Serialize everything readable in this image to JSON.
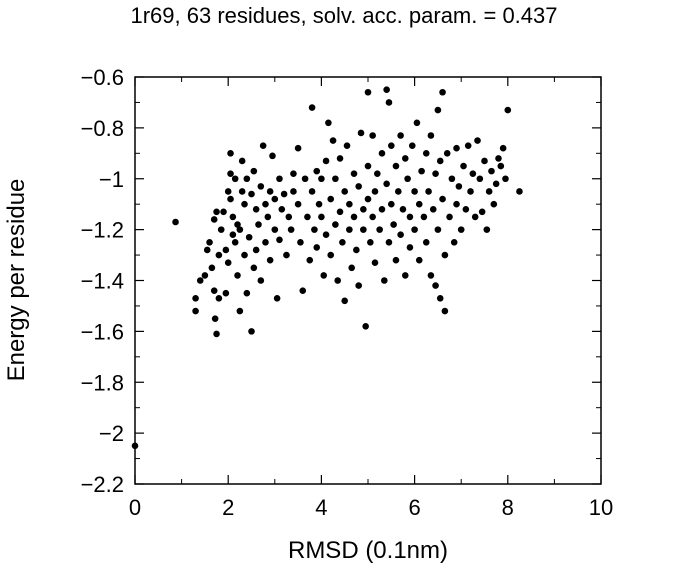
{
  "chart_data": {
    "type": "scatter",
    "title": "1r69, 63 residues, solv. acc. param. = 0.437",
    "xlabel": "RMSD (0.1nm)",
    "ylabel": "Energy per residue",
    "xlim": [
      0,
      10
    ],
    "ylim": [
      -2.2,
      -0.6
    ],
    "xticks": [
      0,
      2,
      4,
      6,
      8,
      10
    ],
    "yticks": [
      -2.2,
      -2,
      -1.8,
      -1.6,
      -1.4,
      -1.2,
      -1,
      -0.8,
      -0.6
    ],
    "xtick_labels": [
      "0",
      "2",
      "4",
      "6",
      "8",
      "10"
    ],
    "ytick_labels": [
      "−2.2",
      "−2",
      "−1.8",
      "−1.6",
      "−1.4",
      "−1.2",
      "−1",
      "−0.8",
      "−0.6"
    ],
    "grid": false,
    "marker_color": "#000000",
    "points": [
      [
        0.0,
        -2.05
      ],
      [
        0.87,
        -1.17
      ],
      [
        1.3,
        -1.47
      ],
      [
        1.3,
        -1.52
      ],
      [
        1.4,
        -1.4
      ],
      [
        1.5,
        -1.38
      ],
      [
        1.55,
        -1.28
      ],
      [
        1.6,
        -1.25
      ],
      [
        1.65,
        -1.35
      ],
      [
        1.7,
        -1.16
      ],
      [
        1.7,
        -1.44
      ],
      [
        1.72,
        -1.55
      ],
      [
        1.75,
        -1.13
      ],
      [
        1.75,
        -1.61
      ],
      [
        1.8,
        -1.3
      ],
      [
        1.8,
        -1.47
      ],
      [
        1.85,
        -1.2
      ],
      [
        1.9,
        -1.13
      ],
      [
        1.95,
        -1.28
      ],
      [
        1.95,
        -1.45
      ],
      [
        2.0,
        -1.05
      ],
      [
        2.0,
        -1.33
      ],
      [
        2.05,
        -1.08
      ],
      [
        2.05,
        -0.9
      ],
      [
        2.05,
        -0.98
      ],
      [
        2.1,
        -1.15
      ],
      [
        2.1,
        -1.22
      ],
      [
        2.15,
        -1.0
      ],
      [
        2.15,
        -1.25
      ],
      [
        2.2,
        -1.38
      ],
      [
        2.2,
        -1.18
      ],
      [
        2.25,
        -1.52
      ],
      [
        2.25,
        -1.2
      ],
      [
        2.3,
        -0.93
      ],
      [
        2.3,
        -1.05
      ],
      [
        2.35,
        -1.1
      ],
      [
        2.35,
        -1.3
      ],
      [
        2.4,
        -1.0
      ],
      [
        2.4,
        -1.45
      ],
      [
        2.45,
        -1.23
      ],
      [
        2.5,
        -1.06
      ],
      [
        2.5,
        -1.6
      ],
      [
        2.55,
        -0.97
      ],
      [
        2.55,
        -1.35
      ],
      [
        2.6,
        -1.12
      ],
      [
        2.6,
        -1.28
      ],
      [
        2.65,
        -1.18
      ],
      [
        2.7,
        -1.03
      ],
      [
        2.7,
        -1.4
      ],
      [
        2.75,
        -0.87
      ],
      [
        2.8,
        -1.1
      ],
      [
        2.8,
        -1.25
      ],
      [
        2.85,
        -1.15
      ],
      [
        2.9,
        -1.05
      ],
      [
        2.9,
        -1.32
      ],
      [
        2.95,
        -0.91
      ],
      [
        3.0,
        -1.08
      ],
      [
        3.0,
        -1.2
      ],
      [
        3.05,
        -1.47
      ],
      [
        3.1,
        -1.0
      ],
      [
        3.1,
        -1.24
      ],
      [
        3.15,
        -1.12
      ],
      [
        3.2,
        -1.06
      ],
      [
        3.25,
        -1.3
      ],
      [
        3.3,
        -1.15
      ],
      [
        3.35,
        -1.2
      ],
      [
        3.4,
        -0.98
      ],
      [
        3.4,
        -1.05
      ],
      [
        3.5,
        -0.88
      ],
      [
        3.5,
        -1.1
      ],
      [
        3.55,
        -1.25
      ],
      [
        3.6,
        -1.44
      ],
      [
        3.65,
        -1.0
      ],
      [
        3.7,
        -1.15
      ],
      [
        3.75,
        -1.32
      ],
      [
        3.8,
        -0.72
      ],
      [
        3.8,
        -1.05
      ],
      [
        3.85,
        -1.2
      ],
      [
        3.9,
        -0.97
      ],
      [
        3.9,
        -1.27
      ],
      [
        3.95,
        -1.1
      ],
      [
        4.0,
        -1.0
      ],
      [
        4.0,
        -1.15
      ],
      [
        4.05,
        -1.38
      ],
      [
        4.1,
        -0.93
      ],
      [
        4.1,
        -1.22
      ],
      [
        4.15,
        -0.78
      ],
      [
        4.2,
        -1.08
      ],
      [
        4.2,
        -1.3
      ],
      [
        4.25,
        -0.85
      ],
      [
        4.3,
        -1.0
      ],
      [
        4.3,
        -1.18
      ],
      [
        4.35,
        -1.4
      ],
      [
        4.4,
        -0.92
      ],
      [
        4.4,
        -1.13
      ],
      [
        4.45,
        -1.25
      ],
      [
        4.5,
        -1.05
      ],
      [
        4.5,
        -1.48
      ],
      [
        4.55,
        -0.87
      ],
      [
        4.6,
        -1.1
      ],
      [
        4.6,
        -1.2
      ],
      [
        4.65,
        -1.35
      ],
      [
        4.7,
        -0.98
      ],
      [
        4.7,
        -1.15
      ],
      [
        4.75,
        -1.28
      ],
      [
        4.8,
        -1.03
      ],
      [
        4.8,
        -1.42
      ],
      [
        4.85,
        -0.82
      ],
      [
        4.9,
        -1.12
      ],
      [
        4.9,
        -1.2
      ],
      [
        4.95,
        -1.58
      ],
      [
        5.0,
        -0.66
      ],
      [
        5.0,
        -0.95
      ],
      [
        5.0,
        -1.08
      ],
      [
        5.05,
        -1.25
      ],
      [
        5.1,
        -0.83
      ],
      [
        5.1,
        -1.15
      ],
      [
        5.15,
        -1.05
      ],
      [
        5.15,
        -1.33
      ],
      [
        5.2,
        -0.98
      ],
      [
        5.25,
        -1.2
      ],
      [
        5.3,
        -0.9
      ],
      [
        5.3,
        -1.12
      ],
      [
        5.35,
        -1.4
      ],
      [
        5.4,
        -0.65
      ],
      [
        5.4,
        -1.02
      ],
      [
        5.45,
        -0.7
      ],
      [
        5.45,
        -1.25
      ],
      [
        5.5,
        -0.87
      ],
      [
        5.5,
        -1.1
      ],
      [
        5.55,
        -1.18
      ],
      [
        5.6,
        -0.95
      ],
      [
        5.6,
        -1.32
      ],
      [
        5.65,
        -1.05
      ],
      [
        5.7,
        -0.83
      ],
      [
        5.7,
        -1.22
      ],
      [
        5.75,
        -1.12
      ],
      [
        5.8,
        -0.92
      ],
      [
        5.8,
        -1.38
      ],
      [
        5.85,
        -1.0
      ],
      [
        5.9,
        -1.15
      ],
      [
        5.9,
        -1.27
      ],
      [
        5.95,
        -0.87
      ],
      [
        6.0,
        -1.05
      ],
      [
        6.0,
        -1.2
      ],
      [
        6.05,
        -0.78
      ],
      [
        6.1,
        -1.1
      ],
      [
        6.1,
        -1.32
      ],
      [
        6.15,
        -0.97
      ],
      [
        6.2,
        -1.15
      ],
      [
        6.25,
        -0.9
      ],
      [
        6.25,
        -1.25
      ],
      [
        6.3,
        -1.05
      ],
      [
        6.35,
        -0.83
      ],
      [
        6.35,
        -1.38
      ],
      [
        6.4,
        -1.12
      ],
      [
        6.45,
        -0.98
      ],
      [
        6.45,
        -1.42
      ],
      [
        6.5,
        -0.73
      ],
      [
        6.5,
        -1.2
      ],
      [
        6.55,
        -0.93
      ],
      [
        6.55,
        -1.47
      ],
      [
        6.6,
        -0.66
      ],
      [
        6.6,
        -1.08
      ],
      [
        6.65,
        -1.3
      ],
      [
        6.65,
        -1.52
      ],
      [
        6.7,
        -0.9
      ],
      [
        6.75,
        -1.15
      ],
      [
        6.8,
        -1.0
      ],
      [
        6.85,
        -1.25
      ],
      [
        6.9,
        -0.88
      ],
      [
        6.9,
        -1.1
      ],
      [
        6.95,
        -1.03
      ],
      [
        7.0,
        -1.2
      ],
      [
        7.05,
        -0.95
      ],
      [
        7.1,
        -1.12
      ],
      [
        7.15,
        -0.87
      ],
      [
        7.2,
        -1.05
      ],
      [
        7.25,
        -0.98
      ],
      [
        7.3,
        -1.15
      ],
      [
        7.35,
        -0.85
      ],
      [
        7.4,
        -1.0
      ],
      [
        7.45,
        -1.13
      ],
      [
        7.5,
        -0.93
      ],
      [
        7.55,
        -1.2
      ],
      [
        7.6,
        -1.05
      ],
      [
        7.65,
        -0.97
      ],
      [
        7.7,
        -1.1
      ],
      [
        7.75,
        -1.02
      ],
      [
        7.8,
        -0.92
      ],
      [
        7.85,
        -0.95
      ],
      [
        7.9,
        -0.88
      ],
      [
        7.95,
        -1.0
      ],
      [
        8.0,
        -0.73
      ],
      [
        8.25,
        -1.05
      ]
    ]
  }
}
